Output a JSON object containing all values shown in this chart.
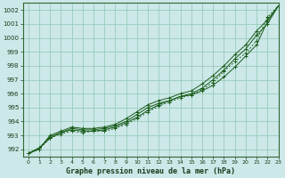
{
  "title": "Graphe pression niveau de la mer (hPa)",
  "background_color": "#cce8e8",
  "grid_color": "#99ccbb",
  "line_color": "#1a5c1a",
  "xlim": [
    -0.5,
    23
  ],
  "ylim": [
    991.5,
    1002.5
  ],
  "yticks": [
    992,
    993,
    994,
    995,
    996,
    997,
    998,
    999,
    1000,
    1001,
    1002
  ],
  "xticks": [
    0,
    1,
    2,
    3,
    4,
    5,
    6,
    7,
    8,
    9,
    10,
    11,
    12,
    13,
    14,
    15,
    16,
    17,
    18,
    19,
    20,
    21,
    22,
    23
  ],
  "series": [
    {
      "y": [
        991.7,
        992.1,
        992.8,
        993.2,
        993.5,
        993.4,
        993.4,
        993.5,
        993.7,
        994.0,
        994.5,
        995.0,
        995.3,
        995.5,
        995.8,
        995.9,
        996.2,
        996.6,
        997.2,
        997.9,
        998.7,
        999.5,
        1001.2,
        1002.3
      ],
      "linestyle": "-",
      "marker": "+"
    },
    {
      "y": [
        991.7,
        992.1,
        992.9,
        993.2,
        993.4,
        993.3,
        993.3,
        993.4,
        993.6,
        993.9,
        994.3,
        994.8,
        995.2,
        995.5,
        995.8,
        996.0,
        996.4,
        997.0,
        997.7,
        998.5,
        999.2,
        1000.2,
        1001.0,
        1002.3
      ],
      "linestyle": "-",
      "marker": "+"
    },
    {
      "y": [
        991.7,
        992.0,
        992.8,
        993.1,
        993.3,
        993.2,
        993.3,
        993.3,
        993.5,
        993.8,
        994.2,
        994.7,
        995.1,
        995.4,
        995.7,
        995.9,
        996.3,
        996.8,
        997.6,
        998.3,
        998.9,
        999.8,
        1001.5,
        1002.3
      ],
      "linestyle": "--",
      "marker": "+"
    },
    {
      "y": [
        991.7,
        992.0,
        993.0,
        993.3,
        993.6,
        993.5,
        993.5,
        993.6,
        993.8,
        994.2,
        994.7,
        995.2,
        995.5,
        995.7,
        996.0,
        996.2,
        996.7,
        997.3,
        998.0,
        998.8,
        999.5,
        1000.5,
        1001.3,
        1002.3
      ],
      "linestyle": "-",
      "marker": "+"
    }
  ]
}
